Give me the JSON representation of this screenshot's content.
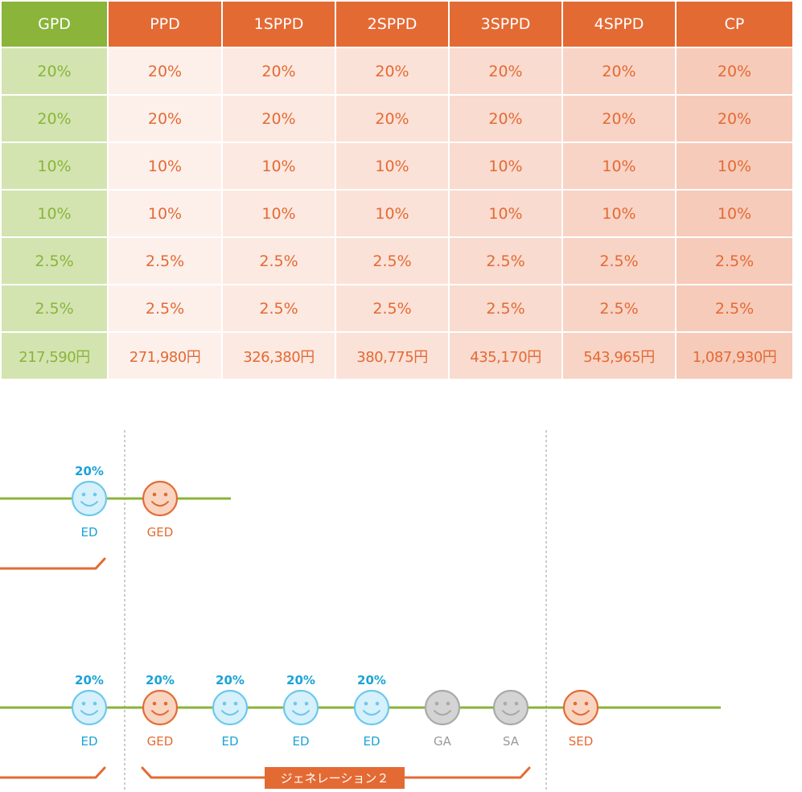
{
  "table": {
    "headers": [
      "GPD",
      "PPD",
      "1SPPD",
      "2SPPD",
      "3SPPD",
      "4SPPD",
      "CP"
    ],
    "rows": [
      [
        "20%",
        "20%",
        "20%",
        "20%",
        "20%",
        "20%",
        "20%"
      ],
      [
        "20%",
        "20%",
        "20%",
        "20%",
        "20%",
        "20%",
        "20%"
      ],
      [
        "10%",
        "10%",
        "10%",
        "10%",
        "10%",
        "10%",
        "10%"
      ],
      [
        "10%",
        "10%",
        "10%",
        "10%",
        "10%",
        "10%",
        "10%"
      ],
      [
        "2.5%",
        "2.5%",
        "2.5%",
        "2.5%",
        "2.5%",
        "2.5%",
        "2.5%"
      ],
      [
        "2.5%",
        "2.5%",
        "2.5%",
        "2.5%",
        "2.5%",
        "2.5%",
        "2.5%"
      ],
      [
        "217,590円",
        "271,980円",
        "326,380円",
        "380,775円",
        "435,170円",
        "543,965円",
        "1,087,930円"
      ]
    ]
  },
  "diagram": {
    "row1": {
      "nodes": [
        {
          "label": "ED",
          "kind": "blue",
          "rate": "20%"
        },
        {
          "label": "GED",
          "kind": "orange",
          "rate": ""
        }
      ]
    },
    "row2": {
      "nodes": [
        {
          "label": "ED",
          "kind": "blue",
          "rate": "20%"
        },
        {
          "label": "GED",
          "kind": "orange",
          "rate": "20%"
        },
        {
          "label": "ED",
          "kind": "blue",
          "rate": "20%"
        },
        {
          "label": "ED",
          "kind": "blue",
          "rate": "20%"
        },
        {
          "label": "ED",
          "kind": "blue",
          "rate": "20%"
        },
        {
          "label": "GA",
          "kind": "gray",
          "rate": ""
        },
        {
          "label": "SA",
          "kind": "gray",
          "rate": ""
        },
        {
          "label": "SED",
          "kind": "orange",
          "rate": ""
        }
      ],
      "bracket_label": "ジェネレーション２"
    },
    "colors": {
      "line": "#8ab43a",
      "blue_fill": "#d6f1fb",
      "blue_stroke": "#6cc8ec",
      "blue_text": "#1aa3d6",
      "orange_fill": "#f9d5c1",
      "orange_stroke": "#e46a34",
      "orange_text": "#e46a34",
      "gray_fill": "#d4d4d4",
      "gray_stroke": "#a9a9a9",
      "gray_text": "#9a9a9a",
      "divider": "#bbbbbb"
    }
  }
}
